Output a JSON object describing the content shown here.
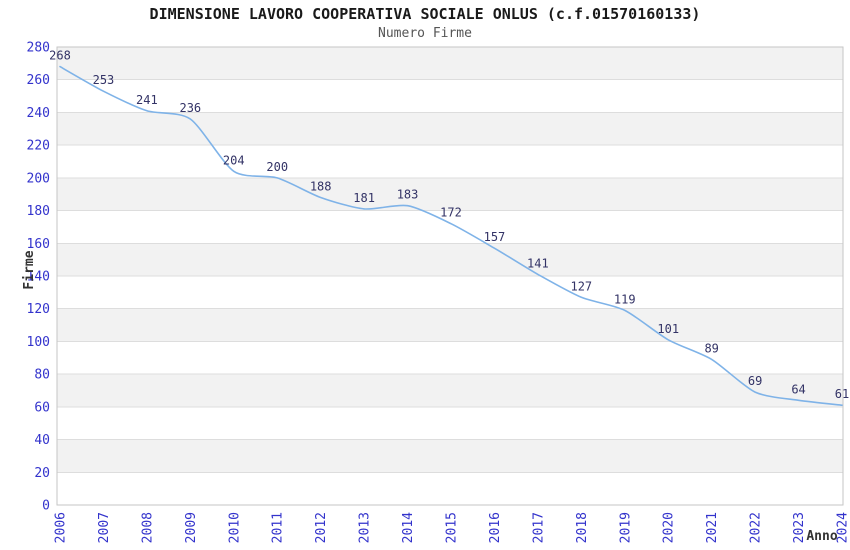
{
  "chart_data": {
    "type": "line",
    "title": "DIMENSIONE LAVORO COOPERATIVA SOCIALE ONLUS (c.f.01570160133)",
    "subtitle": "Numero Firme",
    "xlabel": "Anno",
    "ylabel": "Firme",
    "categories": [
      "2006",
      "2007",
      "2008",
      "2009",
      "2010",
      "2011",
      "2012",
      "2013",
      "2014",
      "2015",
      "2016",
      "2017",
      "2018",
      "2019",
      "2020",
      "2021",
      "2022",
      "2023",
      "2024"
    ],
    "values": [
      268,
      253,
      241,
      236,
      204,
      200,
      188,
      181,
      183,
      172,
      157,
      141,
      127,
      119,
      101,
      89,
      69,
      64,
      61
    ],
    "ylim": [
      0,
      280
    ],
    "ytick_step": 20,
    "grid": true,
    "legend": "none",
    "data_labels_shown": true,
    "colors": {
      "line": "#7fb3e8",
      "tick_label": "#3333cc",
      "data_label": "#333366",
      "band": "#f2f2f2",
      "gridline": "#dddddd",
      "plot_border": "#c6c6c6",
      "axis_title": "#333333",
      "title": "#1a1a1a",
      "subtitle": "#555555",
      "background": "#ffffff"
    }
  }
}
